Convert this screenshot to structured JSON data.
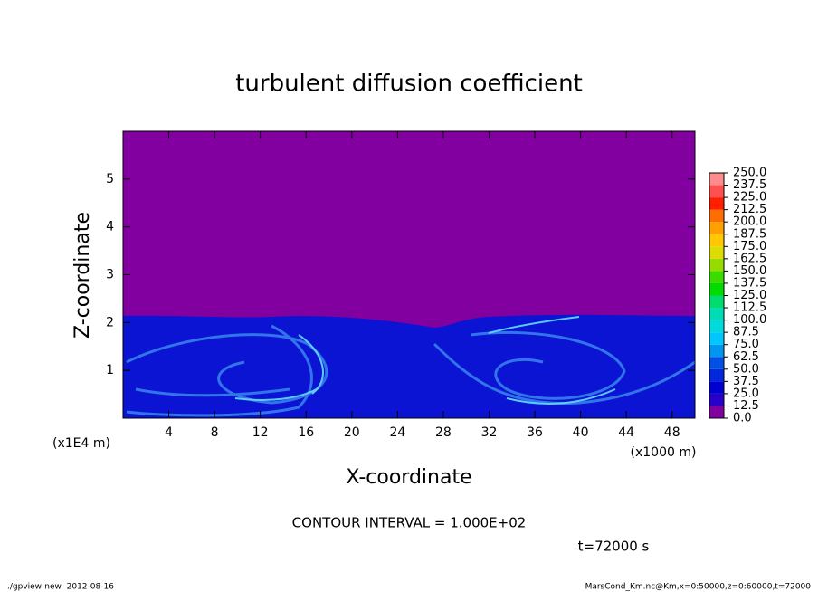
{
  "chart_data": {
    "type": "contour",
    "title": "turbulent diffusion coefficient",
    "x_label": "X-coordinate",
    "y_label": "Z-coordinate",
    "x_unit": "(x1000 m)",
    "y_unit": "(x1E4 m)",
    "xlim": [
      0,
      50
    ],
    "xticks": [
      4,
      8,
      12,
      16,
      20,
      24,
      28,
      32,
      36,
      40,
      44,
      48
    ],
    "ylim": [
      0,
      6
    ],
    "yticks": [
      1,
      2,
      3,
      4,
      5
    ],
    "colorbar": {
      "levels": [
        {
          "value": 0,
          "label": "0.0"
        },
        12.5,
        25,
        37.5,
        50,
        62.5,
        75,
        87.5,
        {
          "value": 100,
          "label": "100.0"
        },
        112.5,
        125,
        137.5,
        150,
        162.5,
        175,
        187.5,
        200,
        212.5,
        225,
        237.5,
        250
      ],
      "level_labels": [
        "0.0",
        "12.5",
        "25.0",
        "37.5",
        "50.0",
        "62.5",
        "75.0",
        "87.5",
        "100.0",
        "112.5",
        "125.0",
        "137.5",
        "150.0",
        "162.5",
        "175.0",
        "187.5",
        "200.0",
        "212.5",
        "225.0",
        "237.5",
        "250.0"
      ],
      "colors": [
        "#8200a0",
        "#2800c8",
        "#0000d2",
        "#0028dc",
        "#0050e6",
        "#0096f0",
        "#00c8ff",
        "#00dcdc",
        "#00dcb4",
        "#00dc6e",
        "#00dc00",
        "#3cdc00",
        "#96dc00",
        "#dcdc00",
        "#ffc800",
        "#ffa000",
        "#ff6e00",
        "#ff1e00",
        "#ff5050",
        "#ff8c8c"
      ]
    },
    "contour_interval_label": "CONTOUR INTERVAL = 1.000E+02",
    "time_label": "t=72000 s",
    "footer_left": "./gpview-new  2012-08-16",
    "footer_right": "MarsCond_Km.nc@Km,x=0:50000,z=0:60000,t=72000"
  }
}
